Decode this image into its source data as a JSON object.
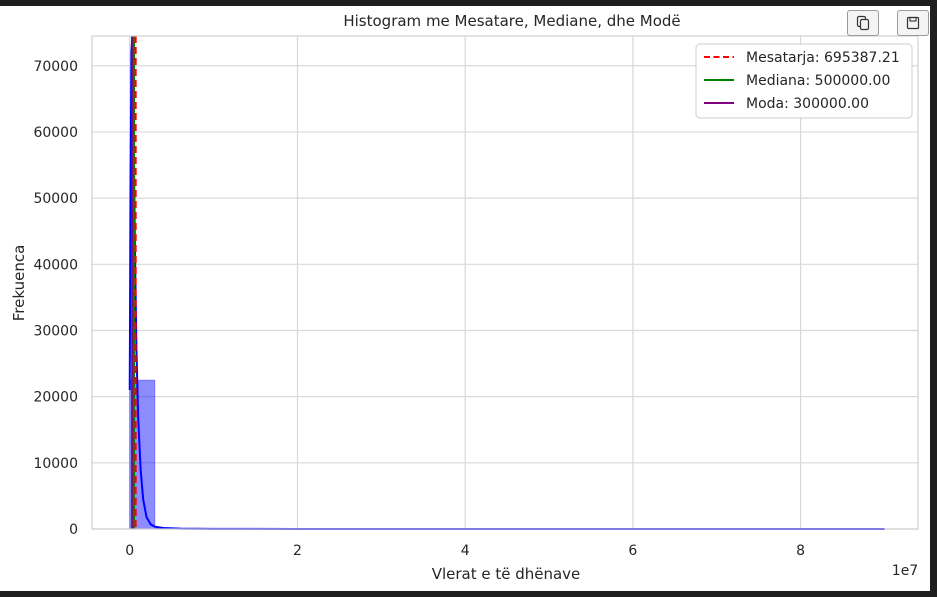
{
  "toolbar": {
    "copy_icon": "copy-icon",
    "save_icon": "save-icon"
  },
  "chart_data": {
    "type": "histogram",
    "title": "Histogram me Mesatare, Mediane, dhe Modë",
    "xlabel": "Vlerat e të dhënave",
    "ylabel": "Frekuenca",
    "x_offset_label": "1e7",
    "xlim": [
      -4500000,
      94000000
    ],
    "ylim": [
      0,
      74500
    ],
    "x_ticks": [
      0,
      20000000,
      40000000,
      60000000,
      80000000
    ],
    "x_tick_labels": [
      "0",
      "2",
      "4",
      "6",
      "8"
    ],
    "y_ticks": [
      0,
      10000,
      20000,
      30000,
      40000,
      50000,
      60000,
      70000
    ],
    "y_tick_labels": [
      "0",
      "10000",
      "20000",
      "30000",
      "40000",
      "50000",
      "60000",
      "70000"
    ],
    "grid": true,
    "bins": {
      "edges": [
        0,
        3000000,
        6000000,
        9000000,
        12000000,
        15000000,
        18000000,
        21000000,
        24000000,
        27000000,
        30000000,
        33000000,
        36000000,
        39000000,
        42000000,
        45000000,
        48000000,
        51000000,
        54000000,
        57000000,
        60000000,
        63000000,
        66000000,
        69000000,
        72000000,
        75000000,
        78000000,
        81000000,
        84000000,
        87000000,
        90000000
      ],
      "counts": [
        22500,
        150,
        60,
        40,
        25,
        15,
        10,
        8,
        6,
        5,
        4,
        3,
        3,
        2,
        2,
        2,
        1,
        1,
        1,
        1,
        1,
        1,
        1,
        1,
        1,
        1,
        1,
        1,
        1,
        1
      ],
      "color": "#0000ff"
    },
    "kde": {
      "color": "#0000ff",
      "points": [
        [
          0,
          21000
        ],
        [
          100000,
          52000
        ],
        [
          200000,
          72000
        ],
        [
          300000,
          74500
        ],
        [
          450000,
          62000
        ],
        [
          600000,
          44000
        ],
        [
          800000,
          27000
        ],
        [
          1000000,
          17000
        ],
        [
          1300000,
          9000
        ],
        [
          1600000,
          4500
        ],
        [
          2000000,
          1800
        ],
        [
          2500000,
          700
        ],
        [
          3000000,
          350
        ],
        [
          4000000,
          150
        ],
        [
          6000000,
          60
        ],
        [
          10000000,
          20
        ],
        [
          20000000,
          5
        ],
        [
          40000000,
          1
        ],
        [
          90000000,
          0
        ]
      ]
    },
    "lines": [
      {
        "name": "Mesatarja: 695387.21",
        "value": 695387.21,
        "color": "#ff0000",
        "style": "dashed"
      },
      {
        "name": "Mediana: 500000.00",
        "value": 500000.0,
        "color": "#008000",
        "style": "solid"
      },
      {
        "name": "Moda: 300000.00",
        "value": 300000.0,
        "color": "#800080",
        "style": "solid"
      }
    ],
    "legend_placement": "top-right"
  }
}
